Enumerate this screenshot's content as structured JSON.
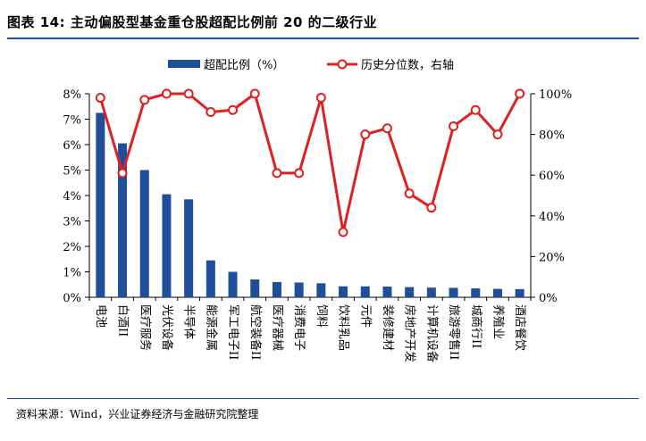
{
  "header": {
    "title": "图表 14:  主动偏股型基金重仓股超配比例前 20 的二级行业"
  },
  "footer": {
    "source": "资料来源：Wind，兴业证券经济与金融研究院整理"
  },
  "colors": {
    "bar": "#1f4e9a",
    "line": "#e02020",
    "marker_fill": "#ffffff",
    "axis": "#000000"
  },
  "chart_data": {
    "type": "bar",
    "title": "主动偏股型基金重仓股超配比例前 20 的二级行业",
    "categories": [
      "电池",
      "白酒II",
      "医疗服务",
      "光伏设备",
      "半导体",
      "能源金属",
      "军工电子II",
      "航空装备II",
      "医疗器械",
      "消费电子",
      "饲料",
      "饮料乳品",
      "元件",
      "装修建材",
      "房地产开发",
      "计算机设备",
      "旅游零售II",
      "城商行II",
      "养殖业",
      "酒店餐饮"
    ],
    "series": [
      {
        "name": "超配比例（%）",
        "type": "bar",
        "axis": "left",
        "values": [
          7.25,
          6.05,
          5.0,
          4.05,
          3.85,
          1.45,
          1.0,
          0.7,
          0.6,
          0.58,
          0.55,
          0.43,
          0.43,
          0.42,
          0.4,
          0.38,
          0.37,
          0.35,
          0.33,
          0.32
        ]
      },
      {
        "name": "历史分位数，右轴",
        "type": "line",
        "axis": "right",
        "values": [
          98,
          61,
          97,
          100,
          100,
          91,
          92,
          100,
          61,
          61,
          98,
          32,
          80,
          83,
          51,
          44,
          84,
          92,
          80,
          100
        ]
      }
    ],
    "y_left": {
      "min": 0,
      "max": 8,
      "ticks": [
        "0%",
        "1%",
        "2%",
        "3%",
        "4%",
        "5%",
        "6%",
        "7%",
        "8%"
      ]
    },
    "y_right": {
      "min": 0,
      "max": 100,
      "ticks": [
        "0%",
        "20%",
        "40%",
        "60%",
        "80%",
        "100%"
      ]
    },
    "legend": {
      "position": "top",
      "bar_label": "超配比例（%）",
      "line_label": "历史分位数，右轴"
    },
    "grid": false
  }
}
